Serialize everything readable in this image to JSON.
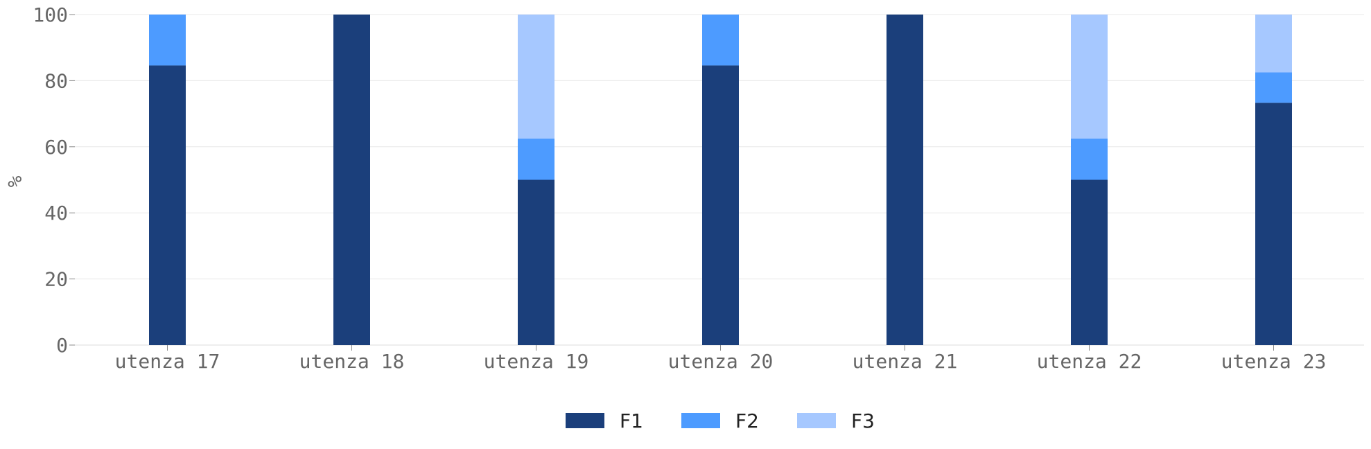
{
  "chart_data": {
    "type": "bar",
    "stacked": true,
    "percent": true,
    "title": "",
    "xlabel": "",
    "ylabel": "%",
    "ylim": [
      0,
      100
    ],
    "yticks": [
      0,
      20,
      40,
      60,
      80,
      100
    ],
    "grid": true,
    "legend_position": "bottom-center",
    "categories": [
      "utenza 17",
      "utenza 18",
      "utenza 19",
      "utenza 20",
      "utenza 21",
      "utenza 22",
      "utenza 23"
    ],
    "series": [
      {
        "name": "F1",
        "color": "#1b3f7b",
        "values": [
          84.6,
          100,
          50,
          84.6,
          100,
          50,
          73.3
        ]
      },
      {
        "name": "F2",
        "color": "#4d9bff",
        "values": [
          15.4,
          0,
          12.5,
          15.4,
          0,
          12.5,
          9.2
        ]
      },
      {
        "name": "F3",
        "color": "#a6c8ff",
        "values": [
          0,
          0,
          37.5,
          0,
          0,
          37.5,
          17.5
        ]
      }
    ]
  }
}
